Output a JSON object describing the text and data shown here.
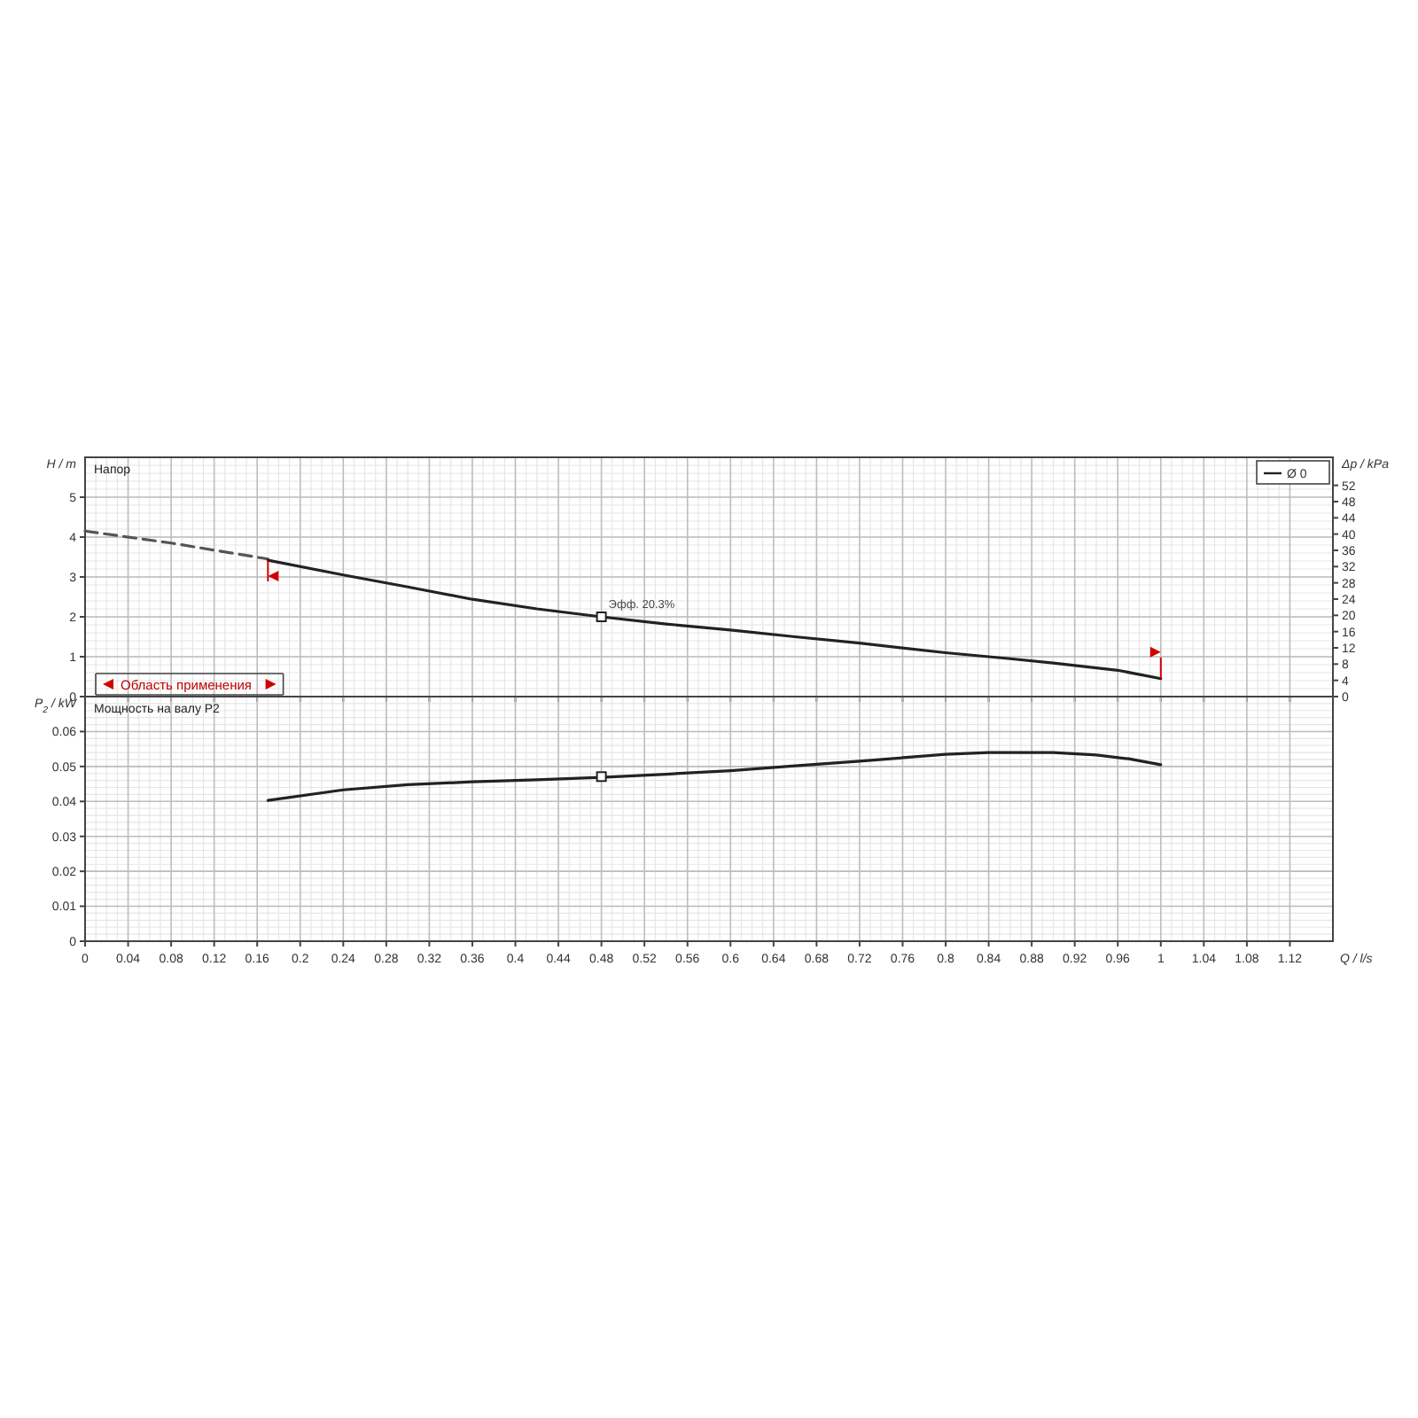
{
  "chart_data": [
    {
      "type": "line",
      "ylabel": "H / m",
      "y2label": "Δp / kPa",
      "annotations": [
        "Напор",
        {
          "text": "Эфф. 20.3%",
          "x": 0.48,
          "y": 2.0
        },
        "Область применения"
      ],
      "xlim": [
        0,
        1.16
      ],
      "xticks": [
        0,
        0.04,
        0.08,
        0.12,
        0.16,
        0.2,
        0.24,
        0.28,
        0.32,
        0.36,
        0.4,
        0.44,
        0.48,
        0.52,
        0.56,
        0.6,
        0.64,
        0.68,
        0.72,
        0.76,
        0.8,
        0.84,
        0.88,
        0.92,
        0.96,
        1,
        1.04,
        1.08,
        1.12
      ],
      "ylim": [
        0,
        6
      ],
      "yticks": [
        0,
        1,
        2,
        3,
        4,
        5
      ],
      "y2lim": [
        0,
        58.9
      ],
      "y2ticks": [
        0,
        4,
        8,
        12,
        16,
        20,
        24,
        28,
        32,
        36,
        40,
        44,
        48,
        52
      ],
      "tick_labels": "y",
      "grid": true,
      "legend": "top right",
      "series": [
        {
          "color": "#555555",
          "line_style": "dashed",
          "x": [
            0,
            0.08,
            0.17
          ],
          "values": [
            4.15,
            3.85,
            3.45
          ]
        },
        {
          "name": "Ø 0",
          "color": "#222222",
          "line_style": "solid",
          "x": [
            0.17,
            0.24,
            0.3,
            0.36,
            0.42,
            0.48,
            0.54,
            0.6,
            0.66,
            0.72,
            0.8,
            0.86,
            0.9,
            0.96,
            1.0
          ],
          "values": [
            3.42,
            3.05,
            2.75,
            2.44,
            2.2,
            2.0,
            1.82,
            1.67,
            1.5,
            1.34,
            1.1,
            0.95,
            0.84,
            0.66,
            0.45
          ]
        },
        {
          "type": "scatter",
          "marker": "square",
          "color": "#222222",
          "x": [
            0.48
          ],
          "values": [
            2.0
          ]
        }
      ]
    },
    {
      "type": "line",
      "ylabel": "P$_{2}$ / kW",
      "xlabel": "Q / l/s",
      "annotations": [
        "Мощность на валу P2"
      ],
      "xlim": [
        0,
        1.16
      ],
      "xticks": [
        0,
        0.04,
        0.08,
        0.12,
        0.16,
        0.2,
        0.24,
        0.28,
        0.32,
        0.36,
        0.4,
        0.44,
        0.48,
        0.52,
        0.56,
        0.6,
        0.64,
        0.68,
        0.72,
        0.76,
        0.8,
        0.84,
        0.88,
        0.92,
        0.96,
        1,
        1.04,
        1.08,
        1.12
      ],
      "ylim": [
        0,
        0.07
      ],
      "yticks": [
        0,
        0.01,
        0.02,
        0.03,
        0.04,
        0.05,
        0.06
      ],
      "grid": true,
      "series": [
        {
          "color": "#222222",
          "line_style": "solid",
          "x": [
            0.17,
            0.24,
            0.3,
            0.36,
            0.42,
            0.48,
            0.54,
            0.6,
            0.66,
            0.72,
            0.8,
            0.84,
            0.9,
            0.94,
            0.97,
            1.0
          ],
          "values": [
            0.0403,
            0.0433,
            0.0448,
            0.0456,
            0.0462,
            0.0469,
            0.0478,
            0.0488,
            0.0502,
            0.0515,
            0.0535,
            0.054,
            0.054,
            0.0533,
            0.0522,
            0.0505
          ]
        },
        {
          "type": "scatter",
          "marker": "square",
          "color": "#222222",
          "x": [
            0.48
          ],
          "values": [
            0.0471
          ]
        }
      ]
    }
  ]
}
